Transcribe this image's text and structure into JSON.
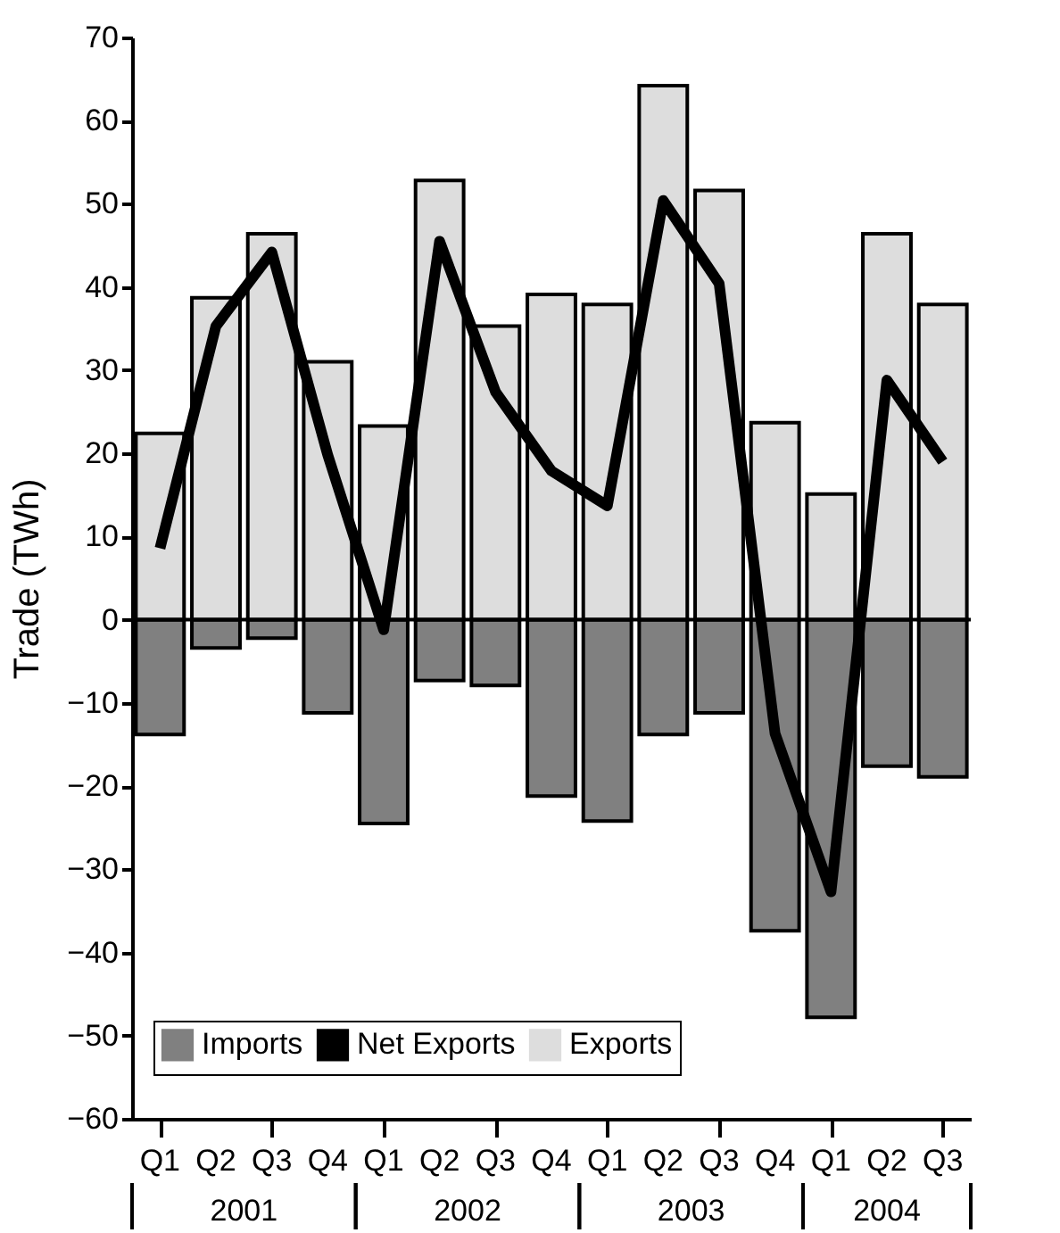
{
  "chart_data": {
    "type": "bar",
    "ylabel": "Trade (TWh)",
    "categories": [
      "Q1",
      "Q2",
      "Q3",
      "Q4",
      "Q1",
      "Q2",
      "Q3",
      "Q4",
      "Q1",
      "Q2",
      "Q3",
      "Q4",
      "Q1",
      "Q2",
      "Q3"
    ],
    "series": [
      {
        "name": "Imports",
        "color": "#808080",
        "values": [
          -13.8,
          -3.4,
          -2.2,
          -11.2,
          -24.5,
          -7.3,
          -7.9,
          -21.2,
          -24.2,
          -13.8,
          -11.2,
          -37.4,
          -47.8,
          -17.6,
          -18.9
        ]
      },
      {
        "name": "Net Exports",
        "type": "line",
        "color": "#000000",
        "values": [
          8.6,
          35.3,
          44.2,
          19.8,
          -1.2,
          45.5,
          27.4,
          17.9,
          13.7,
          50.4,
          40.4,
          -13.7,
          -32.7,
          28.8,
          19.0
        ]
      },
      {
        "name": "Exports",
        "color": "#dddddd",
        "values": [
          22.4,
          38.7,
          46.4,
          31.0,
          23.3,
          52.8,
          35.3,
          39.1,
          37.9,
          64.2,
          51.6,
          23.7,
          15.1,
          46.4,
          37.9
        ]
      }
    ],
    "annotations": [
      {
        "text": "2001"
      },
      {
        "text": "2002"
      },
      {
        "text": "2003"
      },
      {
        "text": "2004"
      }
    ],
    "ref_lines": [
      {
        "axis": "y",
        "value": 0,
        "color": "#000000"
      }
    ],
    "ylim": [
      -60,
      70
    ],
    "yticks": [
      -60,
      -50,
      -40,
      -30,
      -20,
      -10,
      0,
      10,
      20,
      30,
      40,
      50,
      60,
      70
    ],
    "stacked": true,
    "grid": false,
    "legend": "bottom left",
    "line_style": "solid",
    "marker": "none"
  }
}
